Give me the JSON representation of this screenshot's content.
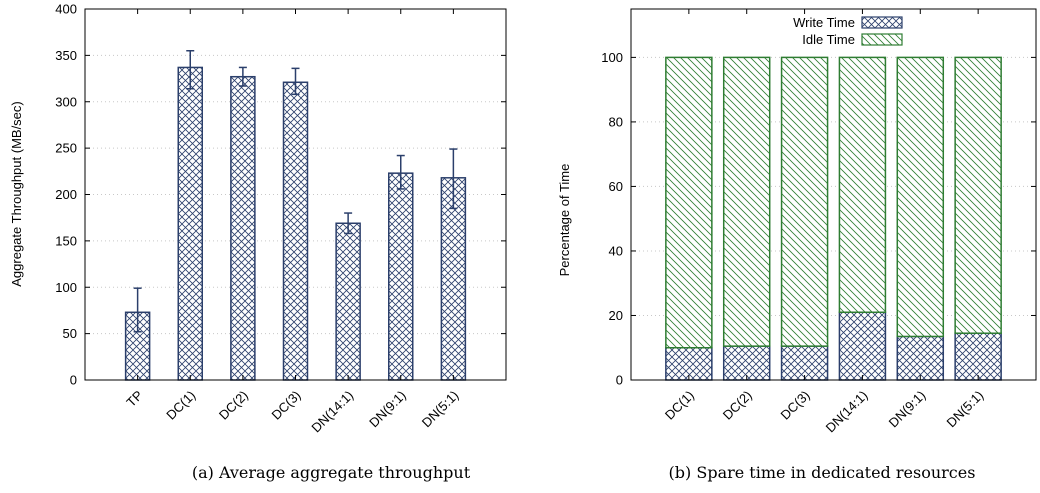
{
  "captions": {
    "left": "(a) Average aggregate throughput",
    "right": "(b) Spare time in dedicated resources"
  },
  "colors": {
    "bar_outline": "#2b3f6b",
    "idle_hatch": "#2e7d32",
    "grid": "#c8c8c8"
  },
  "chart_data": [
    {
      "type": "bar",
      "title": "",
      "xlabel": "",
      "ylabel": "Aggregate Throughput (MB/sec)",
      "ylim": [
        0,
        400
      ],
      "yticks": [
        "0",
        "50",
        "100",
        "150",
        "200",
        "250",
        "300",
        "350",
        "400"
      ],
      "grid": true,
      "categories": [
        "TP",
        "DC(1)",
        "DC(2)",
        "DC(3)",
        "DN(14:1)",
        "DN(9:1)",
        "DN(5:1)"
      ],
      "values": [
        73,
        337,
        327,
        321,
        169,
        223,
        218
      ],
      "error_low": [
        52,
        314,
        317,
        308,
        158,
        206,
        185
      ],
      "error_high": [
        99,
        355,
        337,
        336,
        180,
        242,
        249
      ]
    },
    {
      "type": "bar",
      "stacked": true,
      "title": "",
      "xlabel": "",
      "ylabel": "Percentage of Time",
      "ylim": [
        0,
        115
      ],
      "yticks": [
        "0",
        "20",
        "40",
        "60",
        "80",
        "100"
      ],
      "grid": true,
      "legend_position": "top-center",
      "categories": [
        "DC(1)",
        "DC(2)",
        "DC(3)",
        "DN(14:1)",
        "DN(9:1)",
        "DN(5:1)"
      ],
      "series": [
        {
          "name": "Write Time",
          "values": [
            10,
            10.5,
            10.5,
            21,
            13.5,
            14.5
          ]
        },
        {
          "name": "Idle Time",
          "values": [
            90,
            89.5,
            89.5,
            79,
            86.5,
            85.5
          ]
        }
      ]
    }
  ]
}
